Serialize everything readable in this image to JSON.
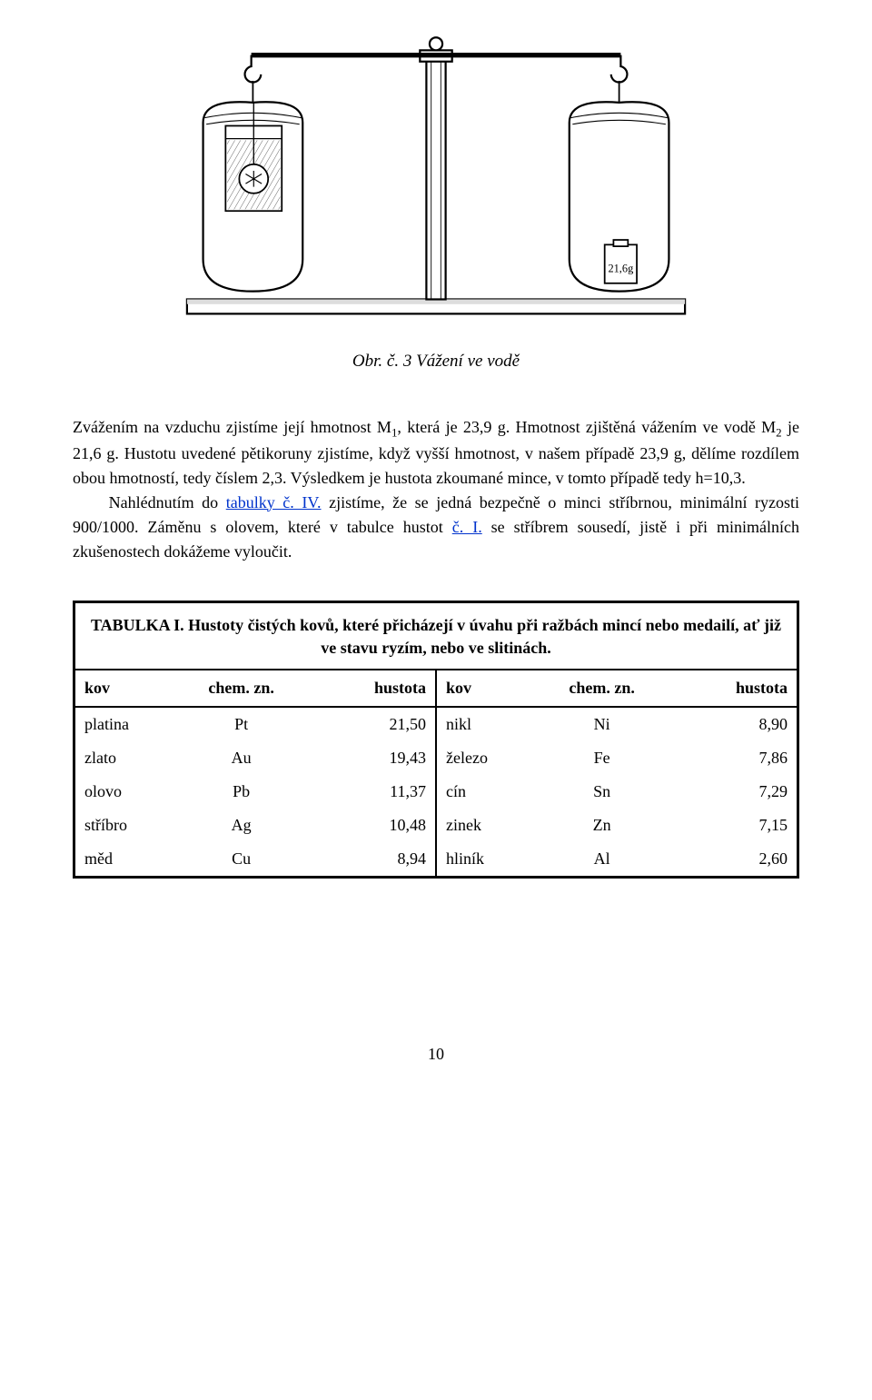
{
  "figure": {
    "caption": "Obr. č. 3 Vážení ve vodě",
    "weight_label": "21,6g"
  },
  "paragraph": {
    "line1_a": "Zvážením na vzduchu zjistíme její hmotnost M",
    "line1_sub1": "1",
    "line1_b": ", která je 23,9 g. Hmotnost zjištěná vážením ve vodě M",
    "line1_sub2": "2",
    "line1_c": " je 21,6 g. Hustotu uvedené pětikoruny zjistíme, když vyšší hmotnost, v našem případě 23,9 g, dělíme rozdílem obou hmotností, tedy číslem 2,3. Výsledkem je hustota zkoumané mince, v tomto případě tedy h=10,3.",
    "line2_a": "Nahlédnutím do ",
    "link1": "tabulky č. IV.",
    "line2_b": " zjistíme, že se jedná bezpečně o minci stříbrnou, minimální ryzosti 900/1000. Záměnu s olovem, které v tabulce hustot ",
    "link2": "č. I.",
    "line2_c": " se stříbrem sousedí, jistě i při minimálních zkušenostech dokážeme vyloučit."
  },
  "table": {
    "title": "TABULKA I. Hustoty čistých kovů, které přicházejí v úvahu při ražbách mincí nebo medailí, ať již ve stavu ryzím, nebo ve slitinách.",
    "headers": [
      "kov",
      "chem. zn.",
      "hustota",
      "kov",
      "chem. zn.",
      "hustota"
    ],
    "rows": [
      [
        "platina",
        "Pt",
        "21,50",
        "nikl",
        "Ni",
        "8,90"
      ],
      [
        "zlato",
        "Au",
        "19,43",
        "železo",
        "Fe",
        "7,86"
      ],
      [
        "olovo",
        "Pb",
        "11,37",
        "cín",
        "Sn",
        "7,29"
      ],
      [
        "stříbro",
        "Ag",
        "10,48",
        "zinek",
        "Zn",
        "7,15"
      ],
      [
        "měd",
        "Cu",
        "8,94",
        "hliník",
        "Al",
        "2,60"
      ]
    ]
  },
  "page_number": "10"
}
